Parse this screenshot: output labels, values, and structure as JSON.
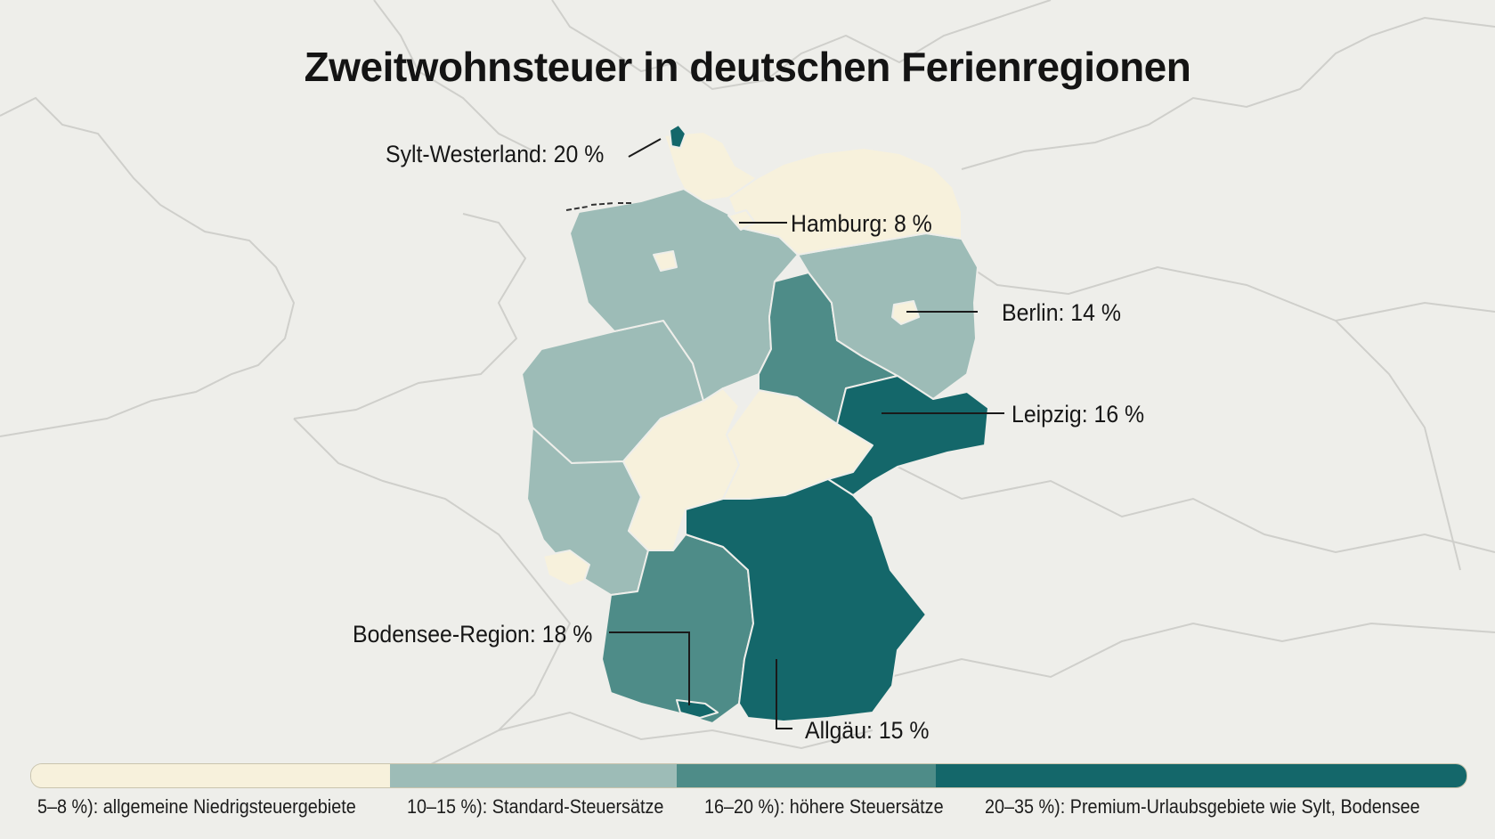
{
  "title": "Zweitwohnsteuer in deutschen Ferienregionen",
  "colors": {
    "background": "#eeeeea",
    "background_land_lines": "#cfcfcb",
    "category_1": "#f7f1dc",
    "category_2": "#9dbcb7",
    "category_3": "#4e8c88",
    "category_4": "#14676a",
    "callout_line": "#1a1a1a"
  },
  "callouts": [
    {
      "id": "sylt",
      "label": "Sylt-Westerland: 20 %",
      "rate_percent": 20
    },
    {
      "id": "hamburg",
      "label": "Hamburg: 8 %",
      "rate_percent": 8
    },
    {
      "id": "berlin",
      "label": "Berlin: 14 %",
      "rate_percent": 14
    },
    {
      "id": "leipzig",
      "label": "Leipzig: 16 %",
      "rate_percent": 16
    },
    {
      "id": "bodensee",
      "label": "Bodensee-Region: 18 %",
      "rate_percent": 18
    },
    {
      "id": "allgaeu",
      "label": "Allgäu: 15 %",
      "rate_percent": 15
    }
  ],
  "regions": [
    {
      "id": "schleswig-holstein",
      "category": 1
    },
    {
      "id": "hamburg",
      "category": 1
    },
    {
      "id": "mecklenburg-vorpommern",
      "category": 1
    },
    {
      "id": "niedersachsen",
      "category": 2
    },
    {
      "id": "bremen",
      "category": 1
    },
    {
      "id": "brandenburg",
      "category": 2
    },
    {
      "id": "berlin",
      "category": 1
    },
    {
      "id": "sachsen-anhalt",
      "category": 3
    },
    {
      "id": "nordrhein-westfalen",
      "category": 2
    },
    {
      "id": "hessen",
      "category": 1
    },
    {
      "id": "thueringen",
      "category": 1
    },
    {
      "id": "sachsen",
      "category": 4
    },
    {
      "id": "rheinland-pfalz",
      "category": 2
    },
    {
      "id": "saarland",
      "category": 1
    },
    {
      "id": "baden-wuerttemberg",
      "category": 3
    },
    {
      "id": "bayern",
      "category": 4
    },
    {
      "id": "sylt",
      "category": 4
    },
    {
      "id": "bodensee",
      "category": 4
    }
  ],
  "legend": [
    {
      "label": "5–8 %): allgemeine Niedrigsteuergebiete",
      "color": "#f7f1dc",
      "share": 0.25
    },
    {
      "label": "10–15 %): Standard-Steuersätze",
      "color": "#9dbcb7",
      "share": 0.2
    },
    {
      "label": "16–20 %): höhere Steuersätze",
      "color": "#4e8c88",
      "share": 0.18
    },
    {
      "label": "20–35 %): Premium-Urlaubsgebiete wie Sylt, Bodensee",
      "color": "#14676a",
      "share": 0.37
    }
  ]
}
